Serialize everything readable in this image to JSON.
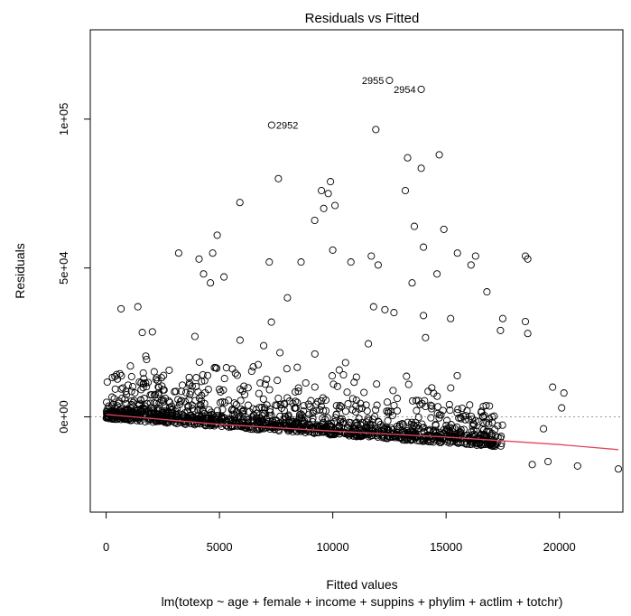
{
  "chart_data": {
    "type": "scatter",
    "title": "Residuals vs Fitted",
    "xlabel": "Fitted values",
    "subtitle": "lm(totexp ~ age + female + income + suppins + phylim + actlim + totchr)",
    "ylabel": "Residuals",
    "xlim": [
      -700,
      22800
    ],
    "ylim": [
      -32000,
      130000
    ],
    "x_ticks": [
      0,
      5000,
      10000,
      15000,
      20000
    ],
    "x_tick_labels": [
      "0",
      "5000",
      "10000",
      "15000",
      "20000"
    ],
    "y_ticks": [
      0,
      50000,
      100000
    ],
    "y_tick_labels": [
      "0e+00",
      "5e+04",
      "1e+05"
    ],
    "reference_line_y": 0,
    "smooth_line": {
      "x": [
        0,
        5000,
        10000,
        15000,
        20000,
        22600
      ],
      "y": [
        800,
        -2500,
        -4800,
        -6800,
        -9300,
        -11000
      ]
    },
    "labeled_points": [
      {
        "label": "2955",
        "x": 12500,
        "y": 113000
      },
      {
        "label": "2954",
        "x": 13900,
        "y": 110000
      },
      {
        "label": "2952",
        "x": 7300,
        "y": 98000
      }
    ],
    "outlier_points": [
      {
        "x": 11900,
        "y": 96500
      },
      {
        "x": 14700,
        "y": 88000
      },
      {
        "x": 13900,
        "y": 83500
      },
      {
        "x": 13300,
        "y": 87000
      },
      {
        "x": 7600,
        "y": 80000
      },
      {
        "x": 9900,
        "y": 79000
      },
      {
        "x": 9500,
        "y": 76000
      },
      {
        "x": 9800,
        "y": 75000
      },
      {
        "x": 13200,
        "y": 76000
      },
      {
        "x": 5900,
        "y": 72000
      },
      {
        "x": 10100,
        "y": 71000
      },
      {
        "x": 9600,
        "y": 70000
      },
      {
        "x": 9200,
        "y": 66000
      },
      {
        "x": 13600,
        "y": 64000
      },
      {
        "x": 14900,
        "y": 63000
      },
      {
        "x": 4900,
        "y": 61000
      },
      {
        "x": 10000,
        "y": 56000
      },
      {
        "x": 14000,
        "y": 57000
      },
      {
        "x": 4100,
        "y": 53000
      },
      {
        "x": 4700,
        "y": 55000
      },
      {
        "x": 3200,
        "y": 55000
      },
      {
        "x": 11700,
        "y": 54000
      },
      {
        "x": 15500,
        "y": 55000
      },
      {
        "x": 16300,
        "y": 54000
      },
      {
        "x": 18500,
        "y": 54000
      },
      {
        "x": 18600,
        "y": 53000
      },
      {
        "x": 7200,
        "y": 52000
      },
      {
        "x": 8600,
        "y": 52000
      },
      {
        "x": 10800,
        "y": 52000
      },
      {
        "x": 12000,
        "y": 51000
      },
      {
        "x": 16100,
        "y": 51000
      },
      {
        "x": 1400,
        "y": 37000
      },
      {
        "x": 4300,
        "y": 48000
      },
      {
        "x": 5200,
        "y": 47000
      },
      {
        "x": 4600,
        "y": 45000
      },
      {
        "x": 8000,
        "y": 40000
      },
      {
        "x": 16800,
        "y": 42000
      },
      {
        "x": 13500,
        "y": 45000
      },
      {
        "x": 14600,
        "y": 48000
      },
      {
        "x": 17500,
        "y": 33000
      },
      {
        "x": 18500,
        "y": 32000
      },
      {
        "x": 17400,
        "y": 29000
      },
      {
        "x": 18600,
        "y": 28000
      },
      {
        "x": 11800,
        "y": 37000
      },
      {
        "x": 12300,
        "y": 36000
      },
      {
        "x": 12700,
        "y": 35000
      },
      {
        "x": 14000,
        "y": 34000
      },
      {
        "x": 15200,
        "y": 33000
      },
      {
        "x": 19700,
        "y": 10000
      },
      {
        "x": 20200,
        "y": 8000
      },
      {
        "x": 22600,
        "y": -17500
      },
      {
        "x": 20800,
        "y": -16500
      },
      {
        "x": 18800,
        "y": -16000
      },
      {
        "x": 19500,
        "y": -15000
      },
      {
        "x": 19300,
        "y": -4000
      },
      {
        "x": 20100,
        "y": 3000
      }
    ]
  }
}
